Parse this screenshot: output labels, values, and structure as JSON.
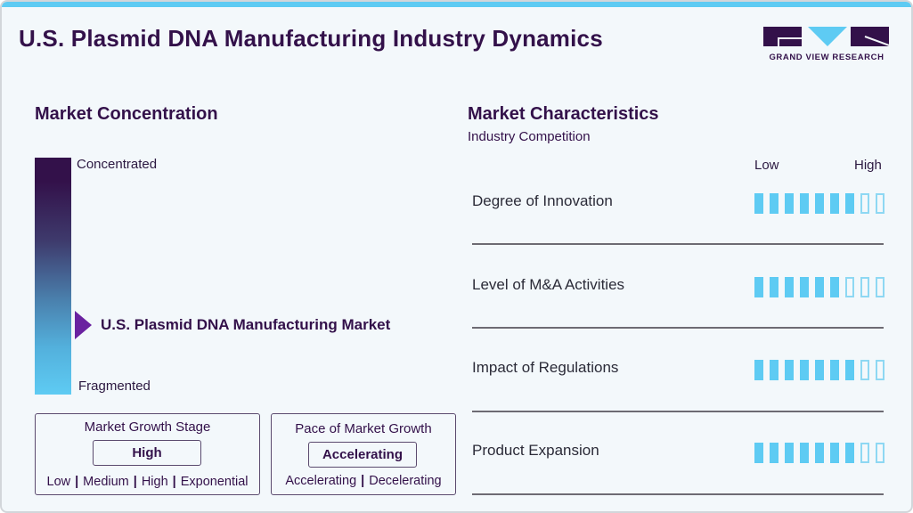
{
  "header": {
    "title": "U.S. Plasmid DNA Manufacturing Industry Dynamics",
    "logo_text": "GRAND VIEW RESEARCH"
  },
  "colors": {
    "accent": "#5ecbf3",
    "brand_dark": "#33114a",
    "arrow": "#6a22a0"
  },
  "concentration": {
    "title": "Market Concentration",
    "top_label": "Concentrated",
    "bottom_label": "Fragmented",
    "market_label": "U.S. Plasmid DNA Manufacturing Market",
    "position_pct_from_top": 70
  },
  "growth_stage": {
    "title": "Market Growth Stage",
    "value": "High",
    "options": [
      "Low",
      "Medium",
      "High",
      "Exponential"
    ]
  },
  "growth_pace": {
    "title": "Pace of Market Growth",
    "value": "Accelerating",
    "options": [
      "Accelerating",
      "Decelerating"
    ]
  },
  "characteristics": {
    "title": "Market Characteristics",
    "subtitle": "Industry Competition",
    "scale_low": "Low",
    "scale_high": "High",
    "max_bars": 9,
    "rows": [
      {
        "label": "Degree of Innovation",
        "filled": 7
      },
      {
        "label": "Level of M&A Activities",
        "filled": 6
      },
      {
        "label": "Impact of Regulations",
        "filled": 7
      },
      {
        "label": "Product Expansion",
        "filled": 7
      }
    ]
  }
}
